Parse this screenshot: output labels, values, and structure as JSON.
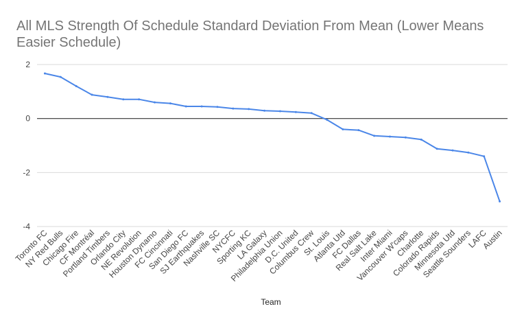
{
  "chart_data": {
    "type": "line",
    "title": "All MLS Strength Of Schedule Standard Deviation From Mean (Lower Means Easier Schedule)",
    "xlabel": "Team",
    "ylabel": "",
    "ylim": [
      -4,
      2
    ],
    "yticks": [
      "2",
      "0",
      "-2",
      "-4"
    ],
    "grid": true,
    "legend": "none",
    "line_color": "#4a86e8",
    "categories": [
      "Toronto FC",
      "NY Red Bulls",
      "Chicago Fire",
      "CF Montréal",
      "Portland Timbers",
      "Orlando City",
      "NE Revolution",
      "Houston Dynamo",
      "FC Cincinnati",
      "San Diego FC",
      "SJ Earthquakes",
      "Nashville SC",
      "NYCFC",
      "Sporting KC",
      "LA Galaxy",
      "Philadelphia Union",
      "D.C. United",
      "Columbus Crew",
      "St. Louis",
      "Atlanta Utd",
      "FC Dallas",
      "Real Salt Lake",
      "Inter Miami",
      "Vancouver W'caps",
      "Charlotte",
      "Colorado Rapids",
      "Minnesota Utd",
      "Seattle Sounders",
      "LAFC",
      "Austin"
    ],
    "values": [
      1.67,
      1.54,
      1.2,
      0.88,
      0.8,
      0.71,
      0.71,
      0.6,
      0.56,
      0.45,
      0.45,
      0.43,
      0.37,
      0.35,
      0.29,
      0.27,
      0.24,
      0.2,
      -0.05,
      -0.4,
      -0.43,
      -0.64,
      -0.67,
      -0.7,
      -0.78,
      -1.12,
      -1.18,
      -1.26,
      -1.4,
      -3.07
    ]
  }
}
